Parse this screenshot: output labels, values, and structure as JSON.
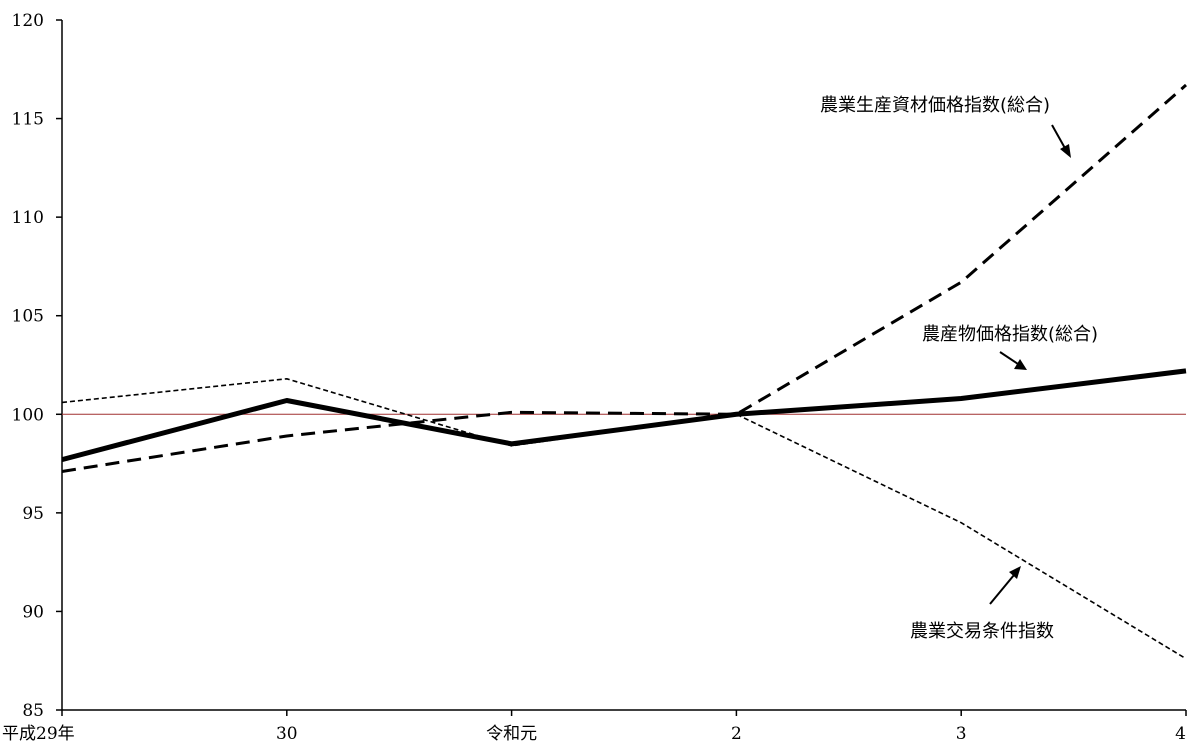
{
  "chart_data": {
    "type": "line",
    "categories": [
      "平成29年",
      "30",
      "令和元",
      "2",
      "3",
      "4"
    ],
    "ylim": [
      85,
      120
    ],
    "yticks": [
      85,
      90,
      95,
      100,
      105,
      110,
      115,
      120
    ],
    "reference_line": {
      "value": 100,
      "color": "#a03030"
    },
    "grid": false,
    "series": [
      {
        "name": "農業生産資材価格指数(総合)",
        "values": [
          97.1,
          98.9,
          100.1,
          100.0,
          106.7,
          116.7
        ],
        "style": "long-dash",
        "color": "#000000"
      },
      {
        "name": "農産物価格指数(総合)",
        "values": [
          97.7,
          100.7,
          98.5,
          100.0,
          100.8,
          102.2
        ],
        "style": "solid-thick",
        "color": "#000000"
      },
      {
        "name": "農業交易条件指数",
        "values": [
          100.6,
          101.8,
          98.4,
          100.0,
          94.5,
          87.6
        ],
        "style": "short-dash",
        "color": "#000000"
      }
    ]
  }
}
